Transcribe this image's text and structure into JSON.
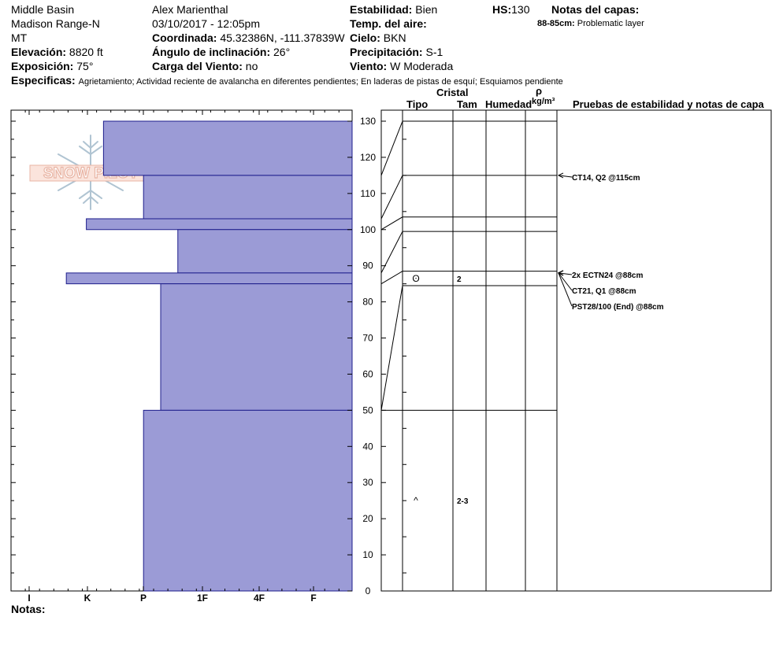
{
  "header": {
    "location": "Middle Basin",
    "range": "Madison Range-N",
    "state": "MT",
    "elevation_label": "Elevación:",
    "elevation_value": "8820 ft",
    "aspect_label": "Exposición:",
    "aspect_value": "75°",
    "observer": "Alex Marienthal",
    "datetime": "03/10/2017 - 12:05pm",
    "coord_label": "Coordinada:",
    "coord_value": "45.32386N, -111.37839W",
    "incline_label": "Ángulo de inclinación:",
    "incline_value": "26°",
    "wind_load_label": "Carga del Viento:",
    "wind_load_value": "no",
    "stability_label": "Estabilidad:",
    "stability_value": "Bien",
    "air_temp_label": "Temp. del aire:",
    "air_temp_value": "",
    "sky_label": "Cielo:",
    "sky_value": "BKN",
    "precip_label": "Precipitación:",
    "precip_value": "S-1",
    "wind_label": "Viento:",
    "wind_value": "W Moderada",
    "hs_label": "HS:",
    "hs_value": "130",
    "layer_notes_label": "Notas del capas:",
    "layer_note_range": "88-85cm:",
    "layer_note_text": "Problematic layer",
    "specifics_label": "Especificas:",
    "specifics_text": "Agrietamiento;  Actividad reciente de avalancha en diferentes pendientes;  En laderas de pistas de esquí;  Esquiamos pendiente"
  },
  "logo": {
    "text": "SNOW PILOT"
  },
  "columns": {
    "cristal": "Cristal",
    "tipo": "Tipo",
    "tam": "Tam",
    "humedad": "Humedad",
    "rho": "ρ",
    "density_unit": "kg/m³",
    "tests": "Pruebas de estabilidad y notas de capa"
  },
  "footer": {
    "notes_label": "Notas:"
  },
  "chart_data": {
    "type": "bar",
    "description_axis": "hardness profile",
    "x_categories": [
      "I",
      "K",
      "P",
      "1F",
      "4F",
      "F"
    ],
    "y_ticks": [
      0,
      10,
      20,
      30,
      40,
      50,
      60,
      70,
      80,
      90,
      100,
      110,
      120,
      130
    ],
    "ylim": [
      0,
      130
    ],
    "layers": [
      {
        "top": 130,
        "bottom": 115,
        "hardness": 1.3
      },
      {
        "top": 115,
        "bottom": 103,
        "hardness": 2.0
      },
      {
        "top": 103,
        "bottom": 100,
        "hardness": 1.0
      },
      {
        "top": 100,
        "bottom": 88,
        "hardness": 2.6
      },
      {
        "top": 88,
        "bottom": 85,
        "hardness": 0.65
      },
      {
        "top": 85,
        "bottom": 50,
        "hardness": 2.3
      },
      {
        "top": 50,
        "bottom": 0,
        "hardness": 2.0
      }
    ],
    "layer_boundaries": [
      130,
      115,
      103.5,
      99.5,
      88.5,
      84.5,
      50
    ],
    "left_boundaries": [
      115,
      103,
      100,
      88,
      85,
      50
    ],
    "crystals": [
      {
        "depth": 86.5,
        "symbol": "ʘ",
        "size": "2"
      },
      {
        "depth": 25,
        "symbol": "^",
        "size": "2-3"
      }
    ],
    "tests": [
      {
        "text": "CT14, Q2 @115cm",
        "depth": 115
      },
      {
        "text": "2x ECTN24 @88cm",
        "depth": 88
      },
      {
        "text": "CT21, Q1 @88cm",
        "depth": 88
      },
      {
        "text": "PST28/100 (End) @88cm",
        "depth": 88
      }
    ],
    "colors": {
      "bar_fill": "#9b9bd6",
      "bar_stroke": "#1e1e8c",
      "logo": "#e8b4a4",
      "flake": "#b0c4d2"
    }
  }
}
